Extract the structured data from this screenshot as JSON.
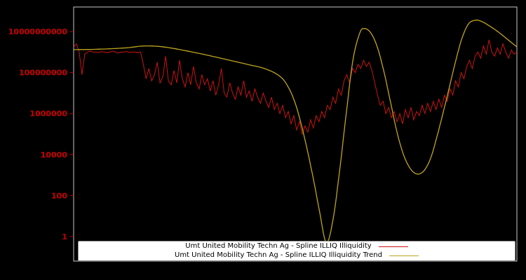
{
  "figure": {
    "background": "#000000"
  },
  "axes": {
    "border_color": "#c8c8c8",
    "tick_color": "#cc0000",
    "tick_label_color": "#cc0000"
  },
  "legend": {
    "background": "#ffffff",
    "border_color": "#8c8c8c",
    "text_color": "#000000"
  },
  "chart_data": {
    "type": "line",
    "title": "",
    "xlabel": "",
    "ylabel": "",
    "yscale": "log",
    "ylim_log10": [
      -1.2,
      11.2
    ],
    "grid": false,
    "legend_position": "lower center",
    "yticks": [
      {
        "value": 1,
        "label": "1"
      },
      {
        "value": 100,
        "label": "100"
      },
      {
        "value": 10000,
        "label": "10000"
      },
      {
        "value": 1000000,
        "label": "1000000"
      },
      {
        "value": 100000000,
        "label": "100000000"
      },
      {
        "value": 10000000000,
        "label": "10000000000"
      }
    ],
    "series": [
      {
        "name": "Umt United Mobility Techn Ag - Spline ILLIQ Illiquidity",
        "color": "#cc1414",
        "x_spacing": "even-normalized-0-1",
        "values_log10": [
          9.25,
          9.4,
          9.0,
          7.9,
          8.9,
          9.0,
          9.05,
          9.0,
          9.0,
          8.98,
          9.02,
          9.0,
          8.97,
          9.0,
          9.05,
          9.0,
          8.95,
          9.0,
          9.0,
          9.03,
          8.98,
          9.0,
          9.0,
          8.97,
          9.0,
          8.4,
          7.7,
          8.2,
          7.6,
          7.9,
          8.5,
          7.5,
          7.8,
          8.8,
          7.6,
          7.4,
          8.1,
          7.5,
          8.6,
          7.7,
          7.3,
          8.0,
          7.4,
          8.3,
          7.5,
          7.2,
          7.9,
          7.4,
          7.7,
          7.1,
          7.6,
          6.9,
          7.4,
          8.2,
          7.0,
          6.8,
          7.5,
          7.0,
          6.7,
          7.3,
          6.9,
          7.6,
          6.8,
          7.1,
          6.6,
          7.2,
          6.8,
          6.5,
          7.0,
          6.6,
          6.3,
          6.8,
          6.2,
          6.5,
          6.0,
          6.4,
          5.8,
          6.1,
          5.5,
          5.9,
          5.2,
          5.6,
          5.0,
          5.4,
          5.1,
          5.7,
          5.3,
          5.9,
          5.6,
          6.1,
          5.8,
          6.4,
          6.2,
          6.8,
          6.5,
          7.2,
          6.9,
          7.6,
          7.9,
          7.5,
          8.2,
          8.0,
          8.4,
          8.2,
          8.6,
          8.3,
          8.5,
          8.1,
          7.5,
          6.9,
          6.4,
          6.6,
          6.0,
          6.3,
          5.8,
          6.1,
          5.6,
          6.0,
          5.5,
          6.2,
          5.8,
          6.3,
          5.7,
          6.1,
          5.9,
          6.4,
          6.0,
          6.5,
          6.1,
          6.6,
          6.2,
          6.7,
          6.3,
          6.9,
          6.6,
          7.2,
          6.9,
          7.6,
          7.3,
          8.0,
          7.7,
          8.3,
          8.6,
          8.2,
          8.8,
          9.0,
          8.7,
          9.3,
          8.9,
          9.6,
          9.0,
          8.8,
          9.2,
          8.9,
          9.4,
          9.0,
          8.7,
          9.1,
          8.9,
          9.0
        ]
      },
      {
        "name": "Umt United Mobility Techn Ag - Spline ILLIQ Illiquidity Trend",
        "color": "#bfa51f",
        "points_x_log10": [
          [
            0.0,
            9.12
          ],
          [
            0.04,
            9.13
          ],
          [
            0.08,
            9.16
          ],
          [
            0.12,
            9.21
          ],
          [
            0.16,
            9.3
          ],
          [
            0.2,
            9.26
          ],
          [
            0.24,
            9.12
          ],
          [
            0.28,
            8.95
          ],
          [
            0.32,
            8.76
          ],
          [
            0.36,
            8.56
          ],
          [
            0.4,
            8.36
          ],
          [
            0.43,
            8.2
          ],
          [
            0.46,
            7.9
          ],
          [
            0.48,
            7.45
          ],
          [
            0.5,
            6.5
          ],
          [
            0.52,
            4.9
          ],
          [
            0.54,
            2.9
          ],
          [
            0.555,
            1.2
          ],
          [
            0.57,
            -0.3
          ],
          [
            0.585,
            0.8
          ],
          [
            0.6,
            3.2
          ],
          [
            0.615,
            6.0
          ],
          [
            0.63,
            8.6
          ],
          [
            0.645,
            9.9
          ],
          [
            0.655,
            10.15
          ],
          [
            0.67,
            9.95
          ],
          [
            0.685,
            9.25
          ],
          [
            0.7,
            8.05
          ],
          [
            0.715,
            6.55
          ],
          [
            0.73,
            5.05
          ],
          [
            0.745,
            3.95
          ],
          [
            0.76,
            3.3
          ],
          [
            0.775,
            3.05
          ],
          [
            0.79,
            3.2
          ],
          [
            0.805,
            3.8
          ],
          [
            0.82,
            4.9
          ],
          [
            0.84,
            6.6
          ],
          [
            0.86,
            8.4
          ],
          [
            0.875,
            9.6
          ],
          [
            0.89,
            10.35
          ],
          [
            0.905,
            10.55
          ],
          [
            0.92,
            10.5
          ],
          [
            0.94,
            10.25
          ],
          [
            0.96,
            9.95
          ],
          [
            0.98,
            9.6
          ],
          [
            1.0,
            9.25
          ]
        ]
      }
    ]
  }
}
